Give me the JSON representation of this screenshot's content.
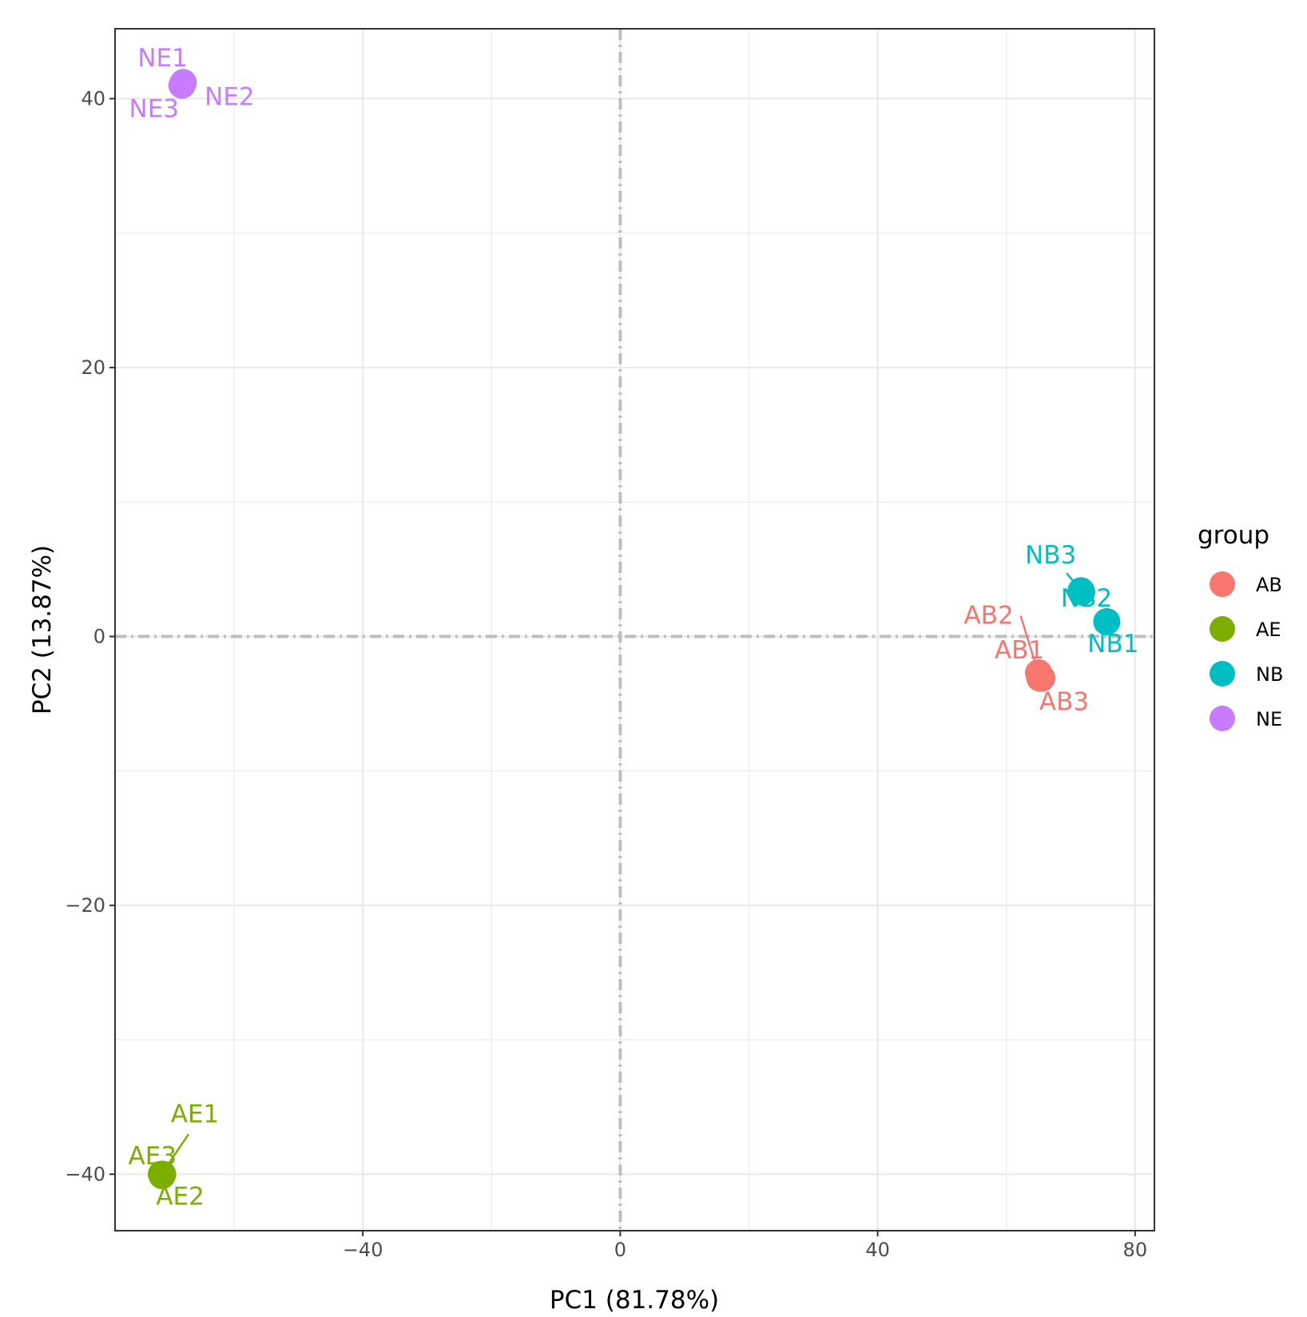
{
  "chart_data": {
    "type": "scatter",
    "xlabel": "PC1 (81.78%)",
    "ylabel": "PC2 (13.87%)",
    "xlim": [
      -78.5,
      83
    ],
    "ylim": [
      -44.2,
      45.2
    ],
    "x_ticks": [
      -40,
      0,
      40,
      80
    ],
    "y_ticks": [
      -40,
      -20,
      0,
      20,
      40
    ],
    "x_tick_labels": [
      "−40",
      "0",
      "40",
      "80"
    ],
    "y_tick_labels": [
      "−40",
      "−20",
      "0",
      "20",
      "40"
    ],
    "grid": true,
    "reference_lines": {
      "x": 0,
      "y": 0,
      "style": "dashed-dotted",
      "color": "#bebebe"
    },
    "legend": {
      "title": "group",
      "position": "right",
      "entries": [
        {
          "label": "AB",
          "color": "#F8766D"
        },
        {
          "label": "AE",
          "color": "#7CAE00"
        },
        {
          "label": "NB",
          "color": "#00BFC4"
        },
        {
          "label": "NE",
          "color": "#C77CFF"
        }
      ]
    },
    "series": [
      {
        "name": "AB",
        "color": "#F8766D",
        "points": [
          {
            "label": "AB1",
            "x": 65.0,
            "y": -2.7
          },
          {
            "label": "AB2",
            "x": 65.2,
            "y": -3.1
          },
          {
            "label": "AB3",
            "x": 65.5,
            "y": -3.1
          }
        ]
      },
      {
        "name": "AE",
        "color": "#7CAE00",
        "points": [
          {
            "label": "AE1",
            "x": -71.3,
            "y": -40.0
          },
          {
            "label": "AE2",
            "x": -71.1,
            "y": -40.0
          },
          {
            "label": "AE3",
            "x": -71.2,
            "y": -40.1
          }
        ]
      },
      {
        "name": "NB",
        "color": "#00BFC4",
        "points": [
          {
            "label": "NB1",
            "x": 75.6,
            "y": 1.1
          },
          {
            "label": "NB2",
            "x": 71.7,
            "y": 3.3
          },
          {
            "label": "NB3",
            "x": 71.6,
            "y": 3.4
          }
        ]
      },
      {
        "name": "NE",
        "color": "#C77CFF",
        "points": [
          {
            "label": "NE1",
            "x": -68.0,
            "y": 41.1
          },
          {
            "label": "NE2",
            "x": -67.9,
            "y": 41.2
          },
          {
            "label": "NE3",
            "x": -68.1,
            "y": 41.0
          }
        ]
      }
    ]
  }
}
